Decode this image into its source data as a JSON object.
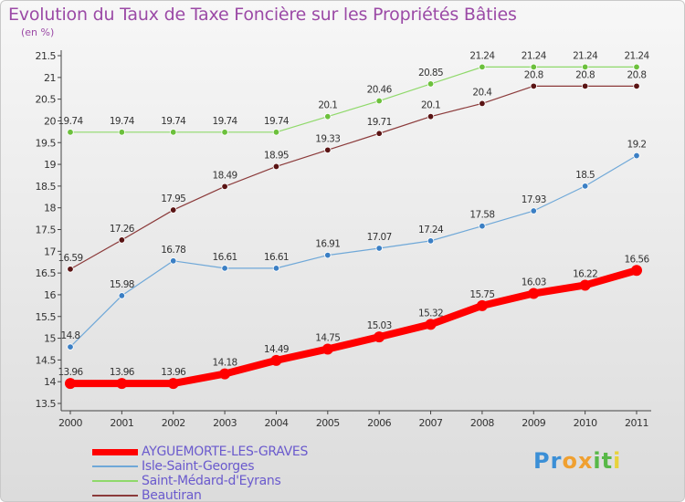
{
  "title": "Evolution du Taux de Taxe Foncière sur les Propriétés Bâties",
  "unit_label": "(en %)",
  "logo": {
    "letters": [
      "P",
      "r",
      "o",
      "x",
      "i",
      "t",
      "i"
    ],
    "colors": [
      "#3b8fd6",
      "#3b8fd6",
      "#f0a030",
      "#f0a030",
      "#58b848",
      "#58b848",
      "#e8d23a"
    ]
  },
  "chart_data": {
    "type": "line",
    "x": [
      2000,
      2001,
      2002,
      2003,
      2004,
      2005,
      2006,
      2007,
      2008,
      2009,
      2010,
      2011
    ],
    "ylim": [
      13.5,
      21.5
    ],
    "yticks": [
      "13.5",
      "14",
      "14.5",
      "15",
      "15.5",
      "16",
      "16.5",
      "17",
      "17.5",
      "18",
      "18.5",
      "19",
      "19.5",
      "20",
      "20.5",
      "21",
      "21.5"
    ],
    "grid": false,
    "legend": "bottom-left",
    "series": [
      {
        "name": "AYGUEMORTE-LES-GRAVES",
        "color": "#ff0000",
        "point_color": "#ff0000",
        "width": 8,
        "values": [
          13.96,
          13.96,
          13.96,
          14.18,
          14.49,
          14.75,
          15.03,
          15.32,
          15.75,
          16.03,
          16.22,
          16.56
        ],
        "labels": [
          "13.96",
          "13.96",
          "13.96",
          "14.18",
          "14.49",
          "14.75",
          "15.03",
          "15.32",
          "15.75",
          "16.03",
          "16.22",
          "16.56"
        ]
      },
      {
        "name": "Isle-Saint-Georges",
        "color": "#6fa8d8",
        "point_color": "#3b7fc4",
        "width": 1.2,
        "values": [
          14.8,
          15.98,
          16.78,
          16.61,
          16.61,
          16.91,
          17.07,
          17.24,
          17.58,
          17.93,
          18.5,
          19.2
        ],
        "labels": [
          "14.8",
          "15.98",
          "16.78",
          "16.61",
          "16.61",
          "16.91",
          "17.07",
          "17.24",
          "17.58",
          "17.93",
          "18.5",
          "19.2"
        ]
      },
      {
        "name": "Saint-Médard-d'Eyrans",
        "color": "#8fd96a",
        "point_color": "#6cc03c",
        "width": 1.2,
        "values": [
          19.74,
          19.74,
          19.74,
          19.74,
          19.74,
          20.1,
          20.46,
          20.85,
          21.24,
          21.24,
          21.24,
          21.24
        ],
        "labels": [
          "19.74",
          "19.74",
          "19.74",
          "19.74",
          "19.74",
          "20.1",
          "20.46",
          "20.85",
          "21.24",
          "21.24",
          "21.24",
          "21.24"
        ]
      },
      {
        "name": "Beautiran",
        "color": "#8b3a3a",
        "point_color": "#5a1414",
        "width": 1.2,
        "values": [
          16.59,
          17.26,
          17.95,
          18.49,
          18.95,
          19.33,
          19.71,
          20.1,
          20.4,
          20.8,
          20.8,
          20.8
        ],
        "labels": [
          "16.59",
          "17.26",
          "17.95",
          "18.49",
          "18.95",
          "19.33",
          "19.71",
          "20.1",
          "20.4",
          "20.8",
          "20.8",
          "20.8"
        ]
      }
    ]
  }
}
